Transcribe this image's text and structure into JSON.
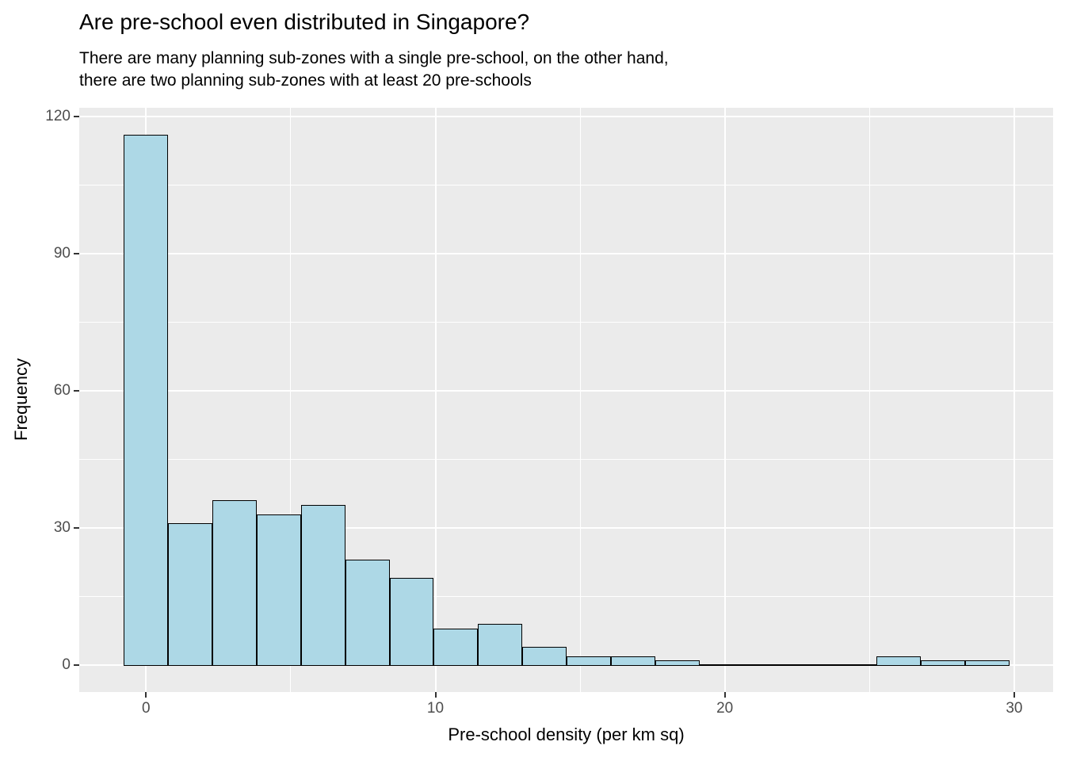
{
  "title": "Are pre-school even distributed in Singapore?",
  "subtitle": {
    "lines": [
      "There are many planning sub-zones with a single pre-school, on the other hand,",
      "there are two planning sub-zones with at least 20 pre-schools"
    ]
  },
  "axes": {
    "x_label": "Pre-school density (per km sq)",
    "y_label": "Frequency"
  },
  "chart_data": {
    "type": "bar",
    "subtype": "histogram",
    "title": "Are pre-school even distributed in Singapore?",
    "subtitle": "There are many planning sub-zones with a single pre-school, on the other hand, there are two planning sub-zones with at least 20 pre-schools",
    "xlabel": "Pre-school density (per km sq)",
    "ylabel": "Frequency",
    "bin_width": 1.53,
    "bin_centers": [
      0,
      1.53,
      3.06,
      4.59,
      6.12,
      7.65,
      9.18,
      10.71,
      12.24,
      13.77,
      15.3,
      16.83,
      18.36,
      19.89,
      21.42,
      22.95,
      24.48,
      26.01,
      27.54,
      29.07
    ],
    "counts": [
      116,
      31,
      36,
      33,
      35,
      23,
      19,
      8,
      9,
      4,
      2,
      2,
      1,
      0,
      0,
      0,
      0,
      2,
      1,
      1
    ],
    "x_ticks": [
      0,
      10,
      20,
      30
    ],
    "x_minor_ticks": [
      5,
      15,
      25
    ],
    "y_ticks": [
      0,
      30,
      60,
      90,
      120
    ],
    "y_minor_ticks": [
      15,
      45,
      75,
      105
    ],
    "xlim": [
      -2.3,
      31.4
    ],
    "ylim": [
      -5.8,
      121.8
    ],
    "grid": "white major and minor gridlines on gray panel",
    "legend_position": "none"
  },
  "colors": {
    "bar_fill": "#ADD8E6",
    "bar_border": "#000000",
    "panel_background": "#EBEBEB",
    "gridline": "#FFFFFF",
    "axis_text": "#4D4D4D",
    "tick_mark": "#333333",
    "text": "#000000",
    "page_background": "#FFFFFF"
  }
}
